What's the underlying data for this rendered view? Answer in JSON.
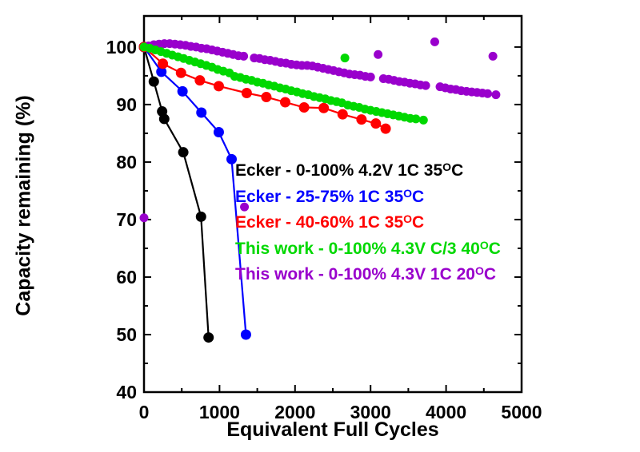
{
  "figure": {
    "background": "#ffffff",
    "axis_color": "#000000"
  },
  "chart_data": {
    "type": "scatter",
    "title": "",
    "xlabel": "Equivalent Full Cycles",
    "ylabel": "Capacity remaining (%)",
    "xlim": [
      0,
      5000
    ],
    "ylim": [
      40,
      105.4
    ],
    "x_major_ticks": [
      0,
      1000,
      2000,
      3000,
      4000,
      5000
    ],
    "x_minor_ticks": [
      500,
      1500,
      2500,
      3500,
      4500
    ],
    "y_major_ticks": [
      40,
      50,
      60,
      70,
      80,
      90,
      100
    ],
    "y_minor_ticks": [
      45,
      55,
      65,
      75,
      85,
      95
    ],
    "grid": false,
    "legend_position": "inside-right-middle",
    "series": [
      {
        "name": "ecker-0-100-4p2v-1c-35c",
        "legend": {
          "text": "Ecker - 0-100% 4.2V 1C 35",
          "sup": "O",
          "end": "C"
        },
        "color": "#000000",
        "marker_radius": 6.5,
        "connect": true,
        "points": [
          [
            0,
            100
          ],
          [
            130,
            94.0
          ],
          [
            240,
            88.8
          ],
          [
            268,
            87.5
          ],
          [
            520,
            81.7
          ],
          [
            755,
            70.5
          ],
          [
            855,
            49.5
          ]
        ],
        "extra_points": []
      },
      {
        "name": "ecker-25-75-1c-35c",
        "legend": {
          "text": "Ecker - 25-75% 1C 35",
          "sup": "O",
          "end": "C"
        },
        "color": "#0000ff",
        "marker_radius": 6.5,
        "connect": true,
        "points": [
          [
            0,
            100
          ],
          [
            230,
            95.7
          ],
          [
            510,
            92.3
          ],
          [
            760,
            88.6
          ],
          [
            990,
            85.2
          ],
          [
            1160,
            80.5
          ],
          [
            1350,
            50
          ]
        ],
        "extra_points": []
      },
      {
        "name": "ecker-40-60-1c-35c",
        "legend": {
          "text": "Ecker - 40-60% 1C 35",
          "sup": "O",
          "end": "C"
        },
        "color": "#ff0000",
        "marker_radius": 6.5,
        "connect": true,
        "points": [
          [
            0,
            100
          ],
          [
            250,
            97.1
          ],
          [
            490,
            95.5
          ],
          [
            740,
            94.2
          ],
          [
            990,
            93.2
          ],
          [
            1360,
            92.0
          ],
          [
            1620,
            91.3
          ],
          [
            1870,
            90.4
          ],
          [
            2120,
            89.5
          ],
          [
            2380,
            89.4
          ],
          [
            2630,
            88.3
          ],
          [
            2880,
            87.4
          ],
          [
            3070,
            86.7
          ],
          [
            3200,
            85.8
          ]
        ],
        "extra_points": []
      },
      {
        "name": "this-work-0-100-4p3v-1c-20c",
        "legend": {
          "text": "This work - 0-100% 4.3V 1C 20",
          "sup": "O",
          "end": "C"
        },
        "color": "#9900cc",
        "marker_radius": 5.5,
        "connect": false,
        "points": [
          [
            0,
            100
          ],
          [
            60,
            100.2
          ],
          [
            130,
            100.4
          ],
          [
            200,
            100.5
          ],
          [
            270,
            100.6
          ],
          [
            340,
            100.6
          ],
          [
            410,
            100.5
          ],
          [
            480,
            100.4
          ],
          [
            550,
            100.3
          ],
          [
            620,
            100.1
          ],
          [
            690,
            100.0
          ],
          [
            760,
            99.8
          ],
          [
            830,
            99.7
          ],
          [
            900,
            99.5
          ],
          [
            970,
            99.3
          ],
          [
            1040,
            99.1
          ],
          [
            1110,
            98.9
          ],
          [
            1180,
            98.7
          ],
          [
            1250,
            98.5
          ],
          [
            1320,
            98.4
          ],
          [
            1460,
            98.1
          ],
          [
            1530,
            98.0
          ],
          [
            1600,
            97.8
          ],
          [
            1670,
            97.7
          ],
          [
            1740,
            97.5
          ],
          [
            1810,
            97.3
          ],
          [
            1880,
            97.2
          ],
          [
            1950,
            97.0
          ],
          [
            2020,
            96.9
          ],
          [
            2090,
            96.8
          ],
          [
            2160,
            96.8
          ],
          [
            2230,
            96.7
          ],
          [
            2300,
            96.5
          ],
          [
            2370,
            96.3
          ],
          [
            2440,
            96.1
          ],
          [
            2510,
            95.9
          ],
          [
            2580,
            95.7
          ],
          [
            2650,
            95.5
          ],
          [
            2720,
            95.3
          ],
          [
            2790,
            95.2
          ],
          [
            2860,
            95.1
          ],
          [
            2930,
            94.9
          ],
          [
            3000,
            94.8
          ],
          [
            3170,
            94.5
          ],
          [
            3240,
            94.4
          ],
          [
            3310,
            94.2
          ],
          [
            3380,
            94.0
          ],
          [
            3450,
            93.9
          ],
          [
            3520,
            93.7
          ],
          [
            3590,
            93.6
          ],
          [
            3660,
            93.4
          ],
          [
            3730,
            93.3
          ],
          [
            3920,
            93.1
          ],
          [
            3990,
            92.9
          ],
          [
            4060,
            92.7
          ],
          [
            4130,
            92.6
          ],
          [
            4200,
            92.4
          ],
          [
            4270,
            92.3
          ],
          [
            4340,
            92.2
          ],
          [
            4410,
            92.1
          ],
          [
            4480,
            92.0
          ],
          [
            4550,
            91.9
          ],
          [
            4660,
            91.7
          ]
        ],
        "extra_points": [
          [
            0,
            70.3
          ],
          [
            1330,
            72.2
          ],
          [
            3100,
            98.7
          ],
          [
            3850,
            100.9
          ],
          [
            4620,
            98.4
          ]
        ]
      },
      {
        "name": "this-work-0-100-4p3v-c3-40c",
        "legend": {
          "text": "This work - 0-100% 4.3V C/3 40",
          "sup": "O",
          "end": "C"
        },
        "color": "#00d800",
        "marker_radius": 5.5,
        "connect": false,
        "points": [
          [
            0,
            100
          ],
          [
            75,
            99.8
          ],
          [
            150,
            99.5
          ],
          [
            225,
            99.2
          ],
          [
            300,
            98.9
          ],
          [
            375,
            98.6
          ],
          [
            450,
            98.3
          ],
          [
            525,
            98.0
          ],
          [
            600,
            97.7
          ],
          [
            675,
            97.4
          ],
          [
            750,
            97.1
          ],
          [
            825,
            96.8
          ],
          [
            900,
            96.5
          ],
          [
            975,
            96.1
          ],
          [
            1050,
            95.8
          ],
          [
            1130,
            95.5
          ],
          [
            1200,
            94.9
          ],
          [
            1275,
            94.7
          ],
          [
            1350,
            94.4
          ],
          [
            1425,
            94.2
          ],
          [
            1500,
            93.9
          ],
          [
            1575,
            93.7
          ],
          [
            1650,
            93.4
          ],
          [
            1725,
            93.2
          ],
          [
            1800,
            92.9
          ],
          [
            1875,
            92.7
          ],
          [
            1950,
            92.4
          ],
          [
            2025,
            92.2
          ],
          [
            2100,
            91.9
          ],
          [
            2175,
            91.7
          ],
          [
            2250,
            91.4
          ],
          [
            2325,
            91.2
          ],
          [
            2400,
            91.0
          ],
          [
            2475,
            90.7
          ],
          [
            2550,
            90.5
          ],
          [
            2620,
            90.3
          ],
          [
            2700,
            89.9
          ],
          [
            2775,
            89.7
          ],
          [
            2850,
            89.5
          ],
          [
            2925,
            89.2
          ],
          [
            3000,
            89.0
          ],
          [
            3075,
            88.8
          ],
          [
            3150,
            88.6
          ],
          [
            3225,
            88.4
          ],
          [
            3300,
            88.2
          ],
          [
            3375,
            88.0
          ],
          [
            3450,
            87.8
          ],
          [
            3525,
            87.6
          ],
          [
            3600,
            87.5
          ],
          [
            3700,
            87.3
          ]
        ],
        "extra_points": [
          [
            2660,
            98.1
          ]
        ]
      }
    ],
    "legend_order": [
      0,
      1,
      2,
      5,
      4
    ],
    "legend_note": "legend rows top-to-bottom: black, blue, red, green(this work C/3), purple(this work 1C)"
  }
}
